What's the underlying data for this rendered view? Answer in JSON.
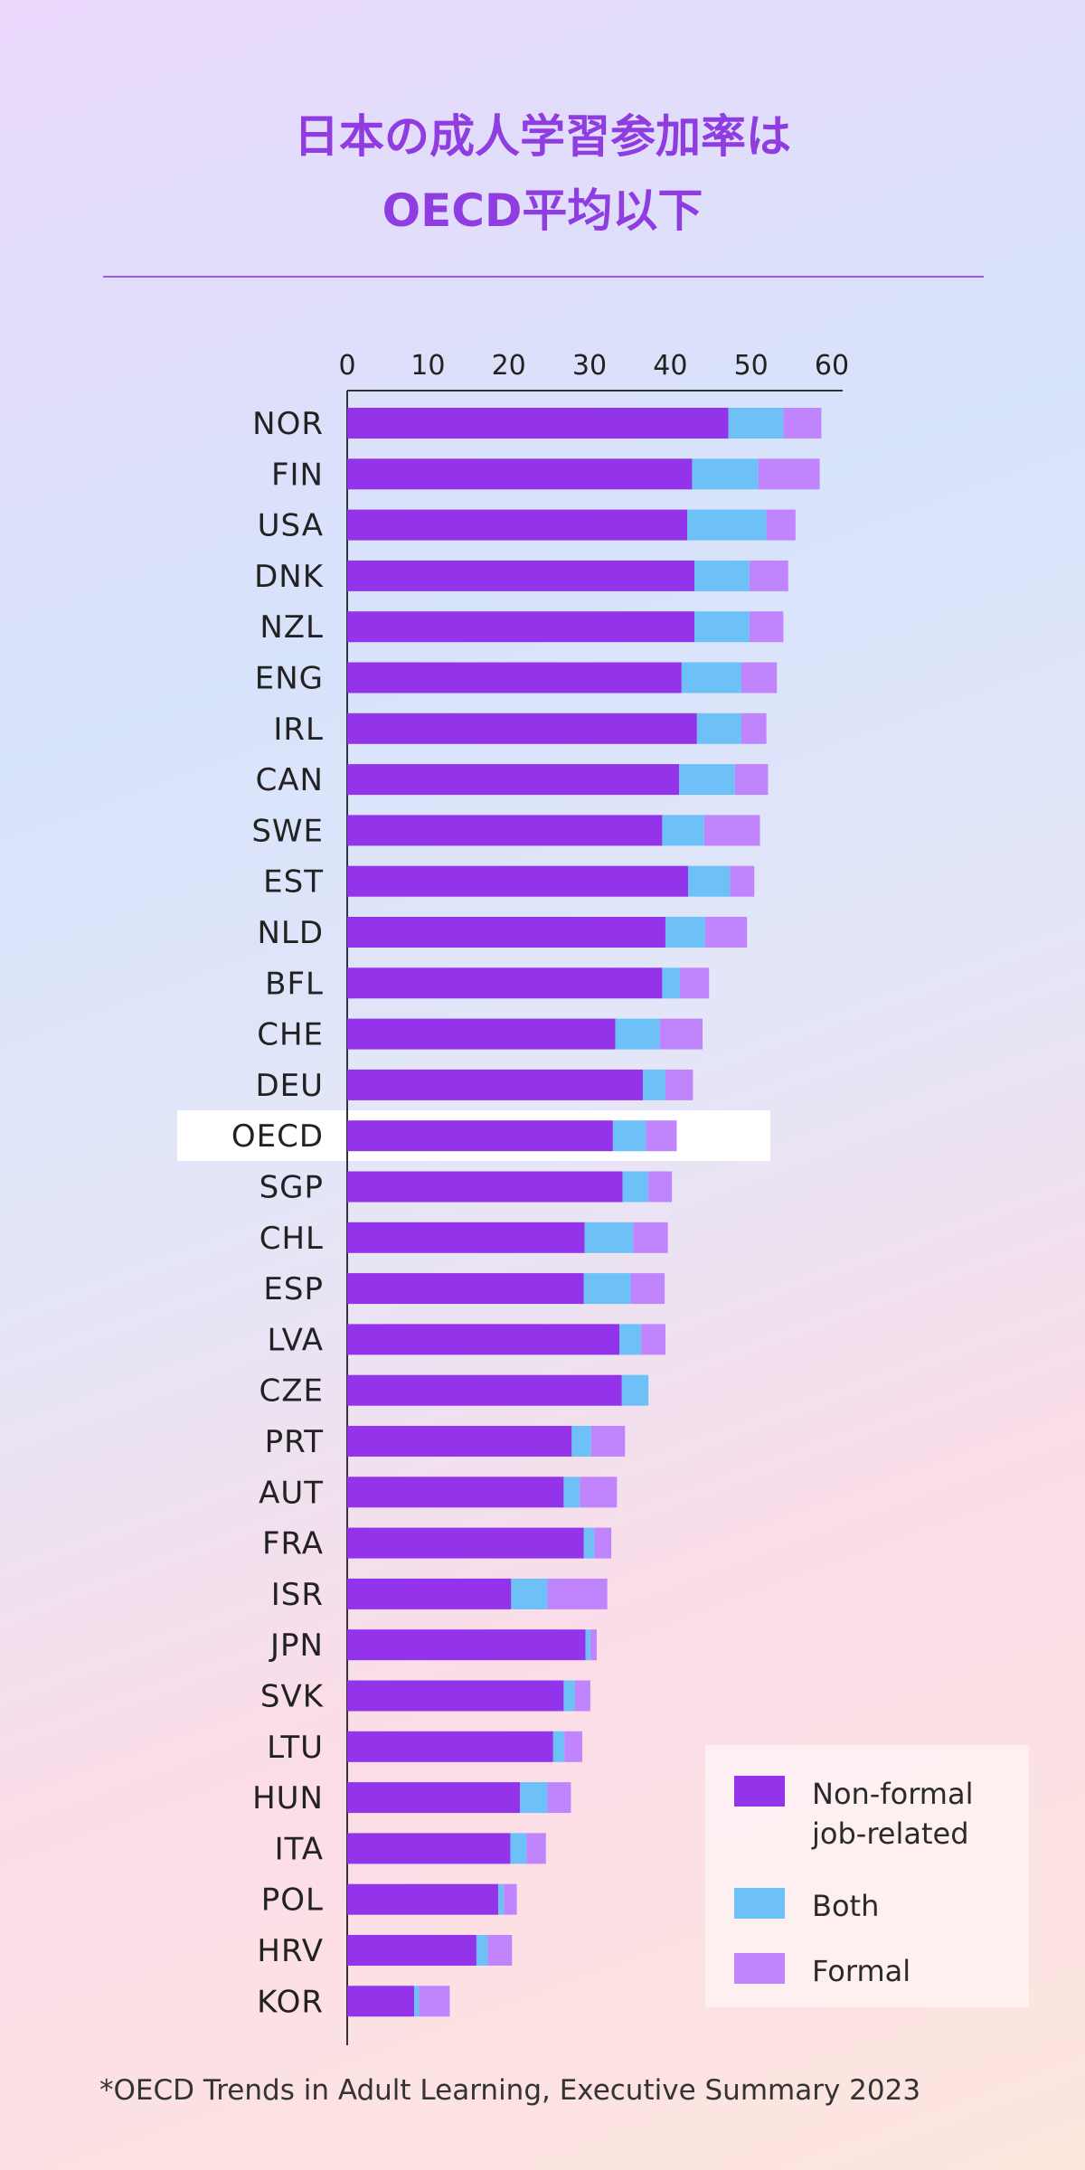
{
  "title": {
    "line1": "日本の成人学習参加率は",
    "line2": "OECD平均以下"
  },
  "footnote": "*OECD Trends in Adult Learning, Executive Summary 2023",
  "colors": {
    "non_formal": "#9333ea",
    "both": "#6ec1f7",
    "formal": "#c084fc",
    "highlight_row": "#ffffff",
    "axis": "#333333"
  },
  "legend": [
    {
      "key": "non_formal",
      "label_line1": "Non-formal",
      "label_line2": "job-related"
    },
    {
      "key": "both",
      "label_line1": "Both",
      "label_line2": ""
    },
    {
      "key": "formal",
      "label_line1": "Formal",
      "label_line2": ""
    }
  ],
  "chart_data": {
    "type": "bar",
    "orientation": "horizontal",
    "stacked": true,
    "xlim": [
      0,
      60
    ],
    "ticks": [
      0,
      10,
      20,
      30,
      40,
      50,
      60
    ],
    "highlight": "OECD",
    "categories": [
      "NOR",
      "FIN",
      "USA",
      "DNK",
      "NZL",
      "ENG",
      "IRL",
      "CAN",
      "SWE",
      "EST",
      "NLD",
      "BFL",
      "CHE",
      "DEU",
      "OECD",
      "SGP",
      "CHL",
      "ESP",
      "LVA",
      "CZE",
      "PRT",
      "AUT",
      "FRA",
      "ISR",
      "JPN",
      "SVK",
      "LTU",
      "HUN",
      "ITA",
      "POL",
      "HRV",
      "KOR"
    ],
    "series": [
      {
        "key": "non_formal",
        "name": "Non-formal job-related",
        "values": [
          47.2,
          42.7,
          42.1,
          43.0,
          43.0,
          41.4,
          43.3,
          41.1,
          39.0,
          42.2,
          39.4,
          39.0,
          33.2,
          36.6,
          32.9,
          34.1,
          29.4,
          29.3,
          33.7,
          34.0,
          27.8,
          26.8,
          29.3,
          20.3,
          29.5,
          26.8,
          25.5,
          21.4,
          20.2,
          18.7,
          16.0,
          8.3
        ]
      },
      {
        "key": "both",
        "name": "Both",
        "values": [
          6.8,
          8.2,
          9.8,
          6.8,
          6.8,
          7.4,
          5.5,
          6.9,
          5.2,
          5.2,
          4.9,
          2.2,
          5.5,
          2.8,
          4.1,
          3.2,
          6.0,
          5.8,
          2.7,
          3.3,
          2.4,
          2.0,
          1.3,
          4.5,
          0.6,
          1.4,
          1.4,
          3.4,
          2.0,
          0.7,
          1.4,
          0.6
        ]
      },
      {
        "key": "formal",
        "name": "Formal",
        "values": [
          4.7,
          7.6,
          3.6,
          4.8,
          4.2,
          4.4,
          3.1,
          4.1,
          6.9,
          3.0,
          5.2,
          3.6,
          5.3,
          3.4,
          3.8,
          2.9,
          4.3,
          4.2,
          3.0,
          0.0,
          4.2,
          4.6,
          2.1,
          7.4,
          0.8,
          1.9,
          2.2,
          2.9,
          2.4,
          1.6,
          3.0,
          3.8
        ]
      }
    ]
  }
}
